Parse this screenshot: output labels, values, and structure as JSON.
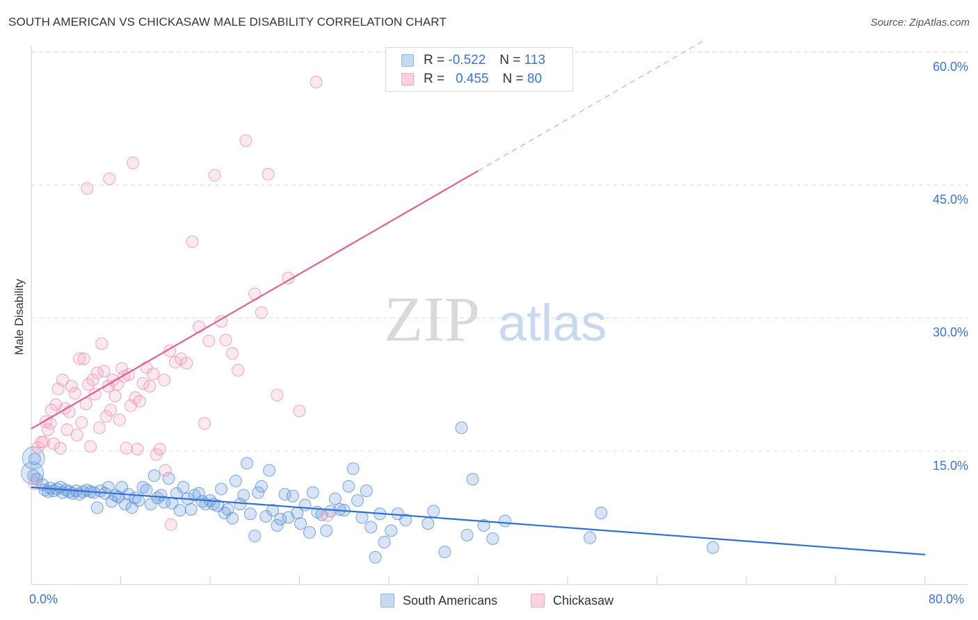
{
  "header": {
    "title": "SOUTH AMERICAN VS CHICKASAW MALE DISABILITY CORRELATION CHART",
    "source": "Source: ZipAtlas.com"
  },
  "watermark": {
    "zip": "ZIP",
    "atlas": "atlas"
  },
  "legend": {
    "rows": [
      {
        "r_label": "R =",
        "r_value": "-0.522",
        "n_label": "N =",
        "n_value": "113",
        "color": "#8fb4e8"
      },
      {
        "r_label": "R =",
        "r_value": "0.455",
        "n_label": "N =",
        "n_value": "80",
        "color": "#f2a7bf"
      }
    ]
  },
  "bottom_legend": {
    "south_americans": "South Americans",
    "chickasaw": "Chickasaw"
  },
  "axes": {
    "ylabel": "Male Disability",
    "yticks": [
      "15.0%",
      "30.0%",
      "45.0%",
      "60.0%"
    ],
    "xticks": [
      "0.0%",
      "80.0%"
    ]
  },
  "chart_data": {
    "type": "scatter",
    "title": "SOUTH AMERICAN VS CHICKASAW MALE DISABILITY CORRELATION CHART",
    "xlabel": "",
    "ylabel": "Male Disability",
    "xlim": [
      0,
      80
    ],
    "ylim": [
      0,
      62
    ],
    "grid": true,
    "legend_position": "top-center",
    "series": [
      {
        "name": "South Americans",
        "color": "#6a9ee0",
        "stroke": "#5b8fd6",
        "trend": {
          "x0": 0,
          "y0": 10.9,
          "x1": 80,
          "y1": 3.3,
          "dashed_from": null
        },
        "points": [
          [
            0.2,
            12.2
          ],
          [
            0.3,
            14.1
          ],
          [
            0.5,
            11.8
          ],
          [
            1.0,
            11.2
          ],
          [
            1.2,
            10.6
          ],
          [
            1.5,
            10.4
          ],
          [
            1.7,
            10.8
          ],
          [
            2.0,
            10.5
          ],
          [
            2.3,
            10.7
          ],
          [
            2.6,
            10.9
          ],
          [
            2.8,
            10.3
          ],
          [
            3.1,
            10.6
          ],
          [
            3.4,
            10.4
          ],
          [
            3.7,
            10.2
          ],
          [
            4.0,
            10.5
          ],
          [
            4.3,
            10.1
          ],
          [
            4.6,
            10.4
          ],
          [
            5.0,
            10.6
          ],
          [
            5.3,
            10.4
          ],
          [
            5.6,
            10.3
          ],
          [
            5.9,
            8.6
          ],
          [
            6.2,
            10.5
          ],
          [
            6.6,
            10.2
          ],
          [
            6.9,
            10.9
          ],
          [
            7.2,
            9.3
          ],
          [
            7.5,
            10.0
          ],
          [
            7.8,
            9.8
          ],
          [
            8.1,
            10.9
          ],
          [
            8.4,
            9.0
          ],
          [
            8.7,
            10.1
          ],
          [
            9.0,
            8.6
          ],
          [
            9.3,
            9.7
          ],
          [
            9.6,
            9.4
          ],
          [
            10.0,
            10.9
          ],
          [
            10.3,
            10.6
          ],
          [
            10.7,
            9.0
          ],
          [
            11.0,
            12.2
          ],
          [
            11.3,
            9.7
          ],
          [
            11.6,
            10.0
          ],
          [
            11.9,
            9.2
          ],
          [
            12.3,
            11.9
          ],
          [
            12.6,
            9.1
          ],
          [
            13.0,
            10.2
          ],
          [
            13.3,
            8.3
          ],
          [
            13.6,
            10.9
          ],
          [
            14.0,
            9.6
          ],
          [
            14.3,
            8.4
          ],
          [
            14.6,
            10.0
          ],
          [
            15.0,
            10.2
          ],
          [
            15.3,
            9.3
          ],
          [
            15.6,
            9.0
          ],
          [
            16.0,
            9.4
          ],
          [
            16.3,
            9.0
          ],
          [
            16.7,
            8.8
          ],
          [
            17.0,
            10.7
          ],
          [
            17.3,
            8.0
          ],
          [
            17.6,
            8.4
          ],
          [
            18.0,
            7.4
          ],
          [
            18.3,
            11.6
          ],
          [
            18.7,
            9.0
          ],
          [
            19.0,
            10.0
          ],
          [
            19.3,
            13.6
          ],
          [
            19.6,
            7.9
          ],
          [
            20.0,
            5.4
          ],
          [
            20.3,
            10.3
          ],
          [
            20.6,
            11.0
          ],
          [
            21.0,
            7.6
          ],
          [
            21.3,
            12.8
          ],
          [
            21.6,
            8.3
          ],
          [
            22.0,
            6.6
          ],
          [
            22.3,
            7.3
          ],
          [
            22.7,
            10.1
          ],
          [
            23.0,
            7.5
          ],
          [
            23.4,
            9.9
          ],
          [
            23.8,
            8.0
          ],
          [
            24.1,
            6.8
          ],
          [
            24.5,
            8.9
          ],
          [
            24.9,
            5.8
          ],
          [
            25.2,
            10.3
          ],
          [
            25.6,
            8.1
          ],
          [
            26.0,
            7.8
          ],
          [
            26.4,
            6.0
          ],
          [
            26.8,
            8.2
          ],
          [
            27.2,
            9.6
          ],
          [
            27.6,
            8.4
          ],
          [
            28.0,
            8.3
          ],
          [
            28.4,
            11.0
          ],
          [
            28.8,
            13.0
          ],
          [
            29.2,
            9.4
          ],
          [
            29.6,
            7.5
          ],
          [
            30.0,
            10.5
          ],
          [
            30.4,
            6.4
          ],
          [
            30.8,
            3.0
          ],
          [
            31.2,
            7.9
          ],
          [
            31.6,
            4.7
          ],
          [
            32.2,
            6.0
          ],
          [
            32.8,
            7.9
          ],
          [
            33.5,
            7.2
          ],
          [
            35.5,
            6.8
          ],
          [
            36.0,
            8.2
          ],
          [
            37.0,
            3.6
          ],
          [
            38.5,
            17.6
          ],
          [
            39.0,
            5.5
          ],
          [
            39.5,
            11.8
          ],
          [
            40.5,
            6.6
          ],
          [
            41.3,
            5.1
          ],
          [
            42.4,
            7.1
          ],
          [
            50.0,
            5.2
          ],
          [
            51.0,
            8.0
          ],
          [
            61.0,
            4.1
          ]
        ],
        "big_points": [
          [
            0.1,
            12.5
          ],
          [
            0.2,
            14.2
          ]
        ]
      },
      {
        "name": "Chickasaw",
        "color": "#f2a7bf",
        "stroke": "#ee8fb0",
        "trend": {
          "x0": 0,
          "y0": 17.5,
          "x1": 80,
          "y1": 75.7,
          "solid_until": 40
        },
        "points": [
          [
            0.3,
            11.3
          ],
          [
            0.6,
            15.4
          ],
          [
            0.9,
            16.0
          ],
          [
            1.1,
            16.0
          ],
          [
            1.3,
            18.3
          ],
          [
            1.5,
            17.4
          ],
          [
            1.7,
            18.1
          ],
          [
            2.0,
            15.8
          ],
          [
            2.2,
            20.2
          ],
          [
            2.4,
            22.0
          ],
          [
            2.6,
            15.3
          ],
          [
            2.8,
            23.0
          ],
          [
            3.0,
            19.8
          ],
          [
            3.2,
            17.4
          ],
          [
            3.4,
            19.4
          ],
          [
            3.6,
            22.3
          ],
          [
            3.9,
            21.5
          ],
          [
            4.1,
            16.8
          ],
          [
            4.3,
            25.4
          ],
          [
            4.5,
            18.2
          ],
          [
            4.7,
            25.4
          ],
          [
            4.9,
            20.3
          ],
          [
            5.1,
            22.5
          ],
          [
            5.3,
            15.5
          ],
          [
            5.5,
            23.0
          ],
          [
            5.7,
            21.4
          ],
          [
            5.9,
            23.8
          ],
          [
            6.1,
            17.6
          ],
          [
            6.3,
            27.1
          ],
          [
            6.5,
            24.0
          ],
          [
            6.7,
            18.9
          ],
          [
            6.9,
            22.3
          ],
          [
            7.1,
            19.6
          ],
          [
            7.3,
            23.0
          ],
          [
            7.5,
            21.2
          ],
          [
            7.7,
            22.5
          ],
          [
            7.9,
            18.5
          ],
          [
            8.1,
            24.3
          ],
          [
            8.3,
            23.4
          ],
          [
            8.5,
            15.3
          ],
          [
            8.7,
            23.6
          ],
          [
            8.9,
            20.1
          ],
          [
            9.1,
            47.5
          ],
          [
            9.3,
            21.0
          ],
          [
            9.5,
            15.2
          ],
          [
            9.7,
            20.6
          ],
          [
            10.0,
            22.6
          ],
          [
            10.3,
            24.4
          ],
          [
            10.6,
            22.3
          ],
          [
            10.9,
            23.7
          ],
          [
            11.2,
            14.6
          ],
          [
            11.5,
            15.2
          ],
          [
            11.9,
            23.0
          ],
          [
            12.4,
            26.3
          ],
          [
            12.9,
            25.0
          ],
          [
            13.4,
            25.4
          ],
          [
            13.9,
            24.9
          ],
          [
            14.4,
            38.6
          ],
          [
            15.0,
            29.0
          ],
          [
            15.5,
            18.1
          ],
          [
            15.9,
            27.4
          ],
          [
            16.4,
            46.1
          ],
          [
            17.0,
            29.6
          ],
          [
            17.4,
            27.5
          ],
          [
            18.0,
            26.0
          ],
          [
            18.5,
            24.1
          ],
          [
            19.2,
            50.0
          ],
          [
            20.0,
            32.7
          ],
          [
            20.6,
            30.6
          ],
          [
            21.2,
            46.2
          ],
          [
            22.0,
            21.3
          ],
          [
            23.0,
            34.5
          ],
          [
            24.0,
            19.5
          ],
          [
            25.5,
            56.6
          ],
          [
            26.5,
            7.7
          ],
          [
            5.0,
            44.6
          ],
          [
            7.0,
            45.7
          ],
          [
            12.5,
            6.7
          ],
          [
            1.8,
            19.6
          ],
          [
            12.0,
            12.8
          ]
        ]
      }
    ]
  }
}
